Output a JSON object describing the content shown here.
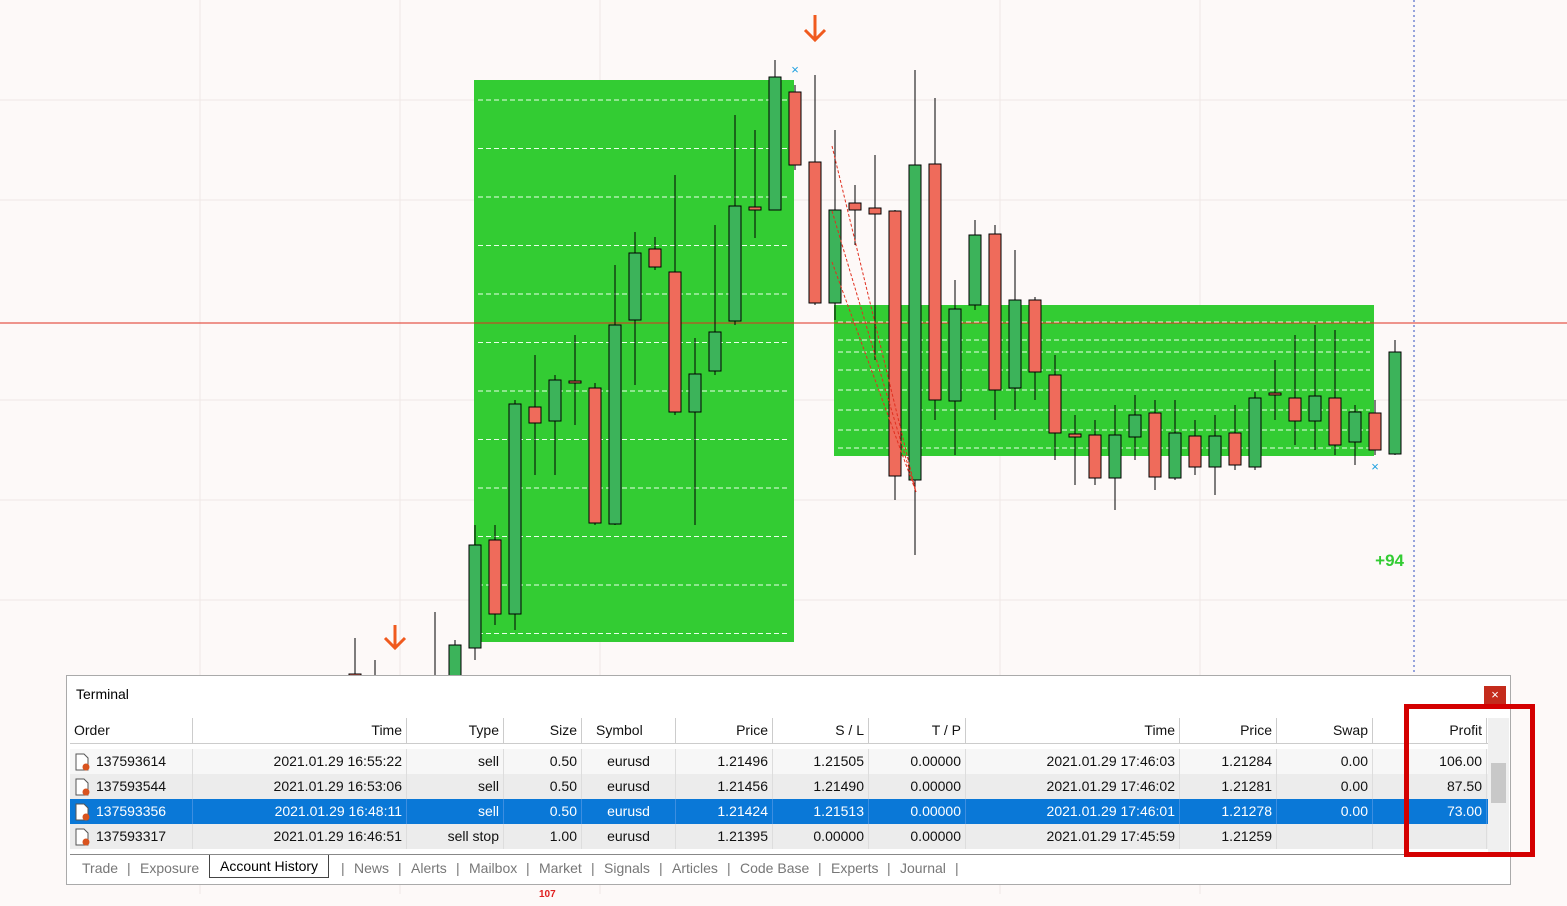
{
  "chart": {
    "annotation": "+94"
  },
  "terminal": {
    "title": "Terminal",
    "close": "×",
    "columns": [
      "Order",
      "Time",
      "Type",
      "Size",
      "Symbol",
      "Price",
      "S / L",
      "T / P",
      "Time",
      "Price",
      "Swap",
      "Profit"
    ],
    "rows": [
      [
        "137593614",
        "2021.01.29 16:55:22",
        "sell",
        "0.50",
        "eurusd",
        "1.21496",
        "1.21505",
        "0.00000",
        "2021.01.29 17:46:03",
        "1.21284",
        "0.00",
        "106.00"
      ],
      [
        "137593544",
        "2021.01.29 16:53:06",
        "sell",
        "0.50",
        "eurusd",
        "1.21456",
        "1.21490",
        "0.00000",
        "2021.01.29 17:46:02",
        "1.21281",
        "0.00",
        "87.50"
      ],
      [
        "137593356",
        "2021.01.29 16:48:11",
        "sell",
        "0.50",
        "eurusd",
        "1.21424",
        "1.21513",
        "0.00000",
        "2021.01.29 17:46:01",
        "1.21278",
        "0.00",
        "73.00"
      ],
      [
        "137593317",
        "2021.01.29 16:46:51",
        "sell stop",
        "1.00",
        "eurusd",
        "1.21395",
        "0.00000",
        "0.00000",
        "2021.01.29 17:45:59",
        "1.21259"
      ]
    ],
    "selected_row": 2,
    "tabs": [
      "Trade",
      "Exposure",
      "Account History",
      "News",
      "Alerts",
      "Mailbox",
      "Market",
      "Signals",
      "Articles",
      "Code Base",
      "Experts",
      "Journal"
    ],
    "active_tab": 2,
    "market_badge": "107"
  }
}
